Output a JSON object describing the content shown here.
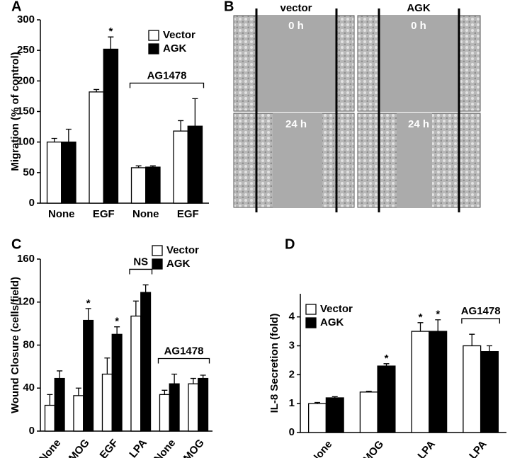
{
  "chart_data": [
    {
      "type": "bar",
      "label": "A",
      "ylabel": "Migration (% of control)",
      "categories": [
        "None",
        "EGF",
        "None",
        "EGF"
      ],
      "series": [
        {
          "name": "Vector",
          "color": "#ffffff",
          "values": [
            100,
            182,
            58,
            118
          ],
          "errors": [
            6,
            4,
            3,
            17
          ],
          "significance": [
            null,
            null,
            null,
            null
          ]
        },
        {
          "name": "AGK",
          "color": "#000000",
          "values": [
            100,
            252,
            59,
            126
          ],
          "errors": [
            21,
            20,
            2,
            45
          ],
          "significance": [
            null,
            "*",
            null,
            null
          ]
        }
      ],
      "brackets": [
        {
          "label": "AG1478",
          "from": 2,
          "to": 3
        }
      ],
      "ylim": [
        0,
        300
      ],
      "yticks": [
        0,
        50,
        100,
        150,
        200,
        250,
        300
      ],
      "legend": "top-right"
    },
    {
      "type": "bar",
      "label": "C",
      "ylabel": "Wound Closure (cells/field)",
      "categories": [
        "None",
        "MOG",
        "EGF",
        "LPA",
        "None",
        "MOG"
      ],
      "series": [
        {
          "name": "Vector",
          "color": "#ffffff",
          "values": [
            24,
            33,
            53,
            107,
            34,
            44
          ],
          "errors": [
            10,
            7,
            15,
            14,
            4,
            5
          ],
          "significance": [
            null,
            null,
            null,
            null,
            null,
            null
          ]
        },
        {
          "name": "AGK",
          "color": "#000000",
          "values": [
            49,
            103,
            90,
            129,
            44,
            49
          ],
          "errors": [
            7,
            11,
            7,
            7,
            9,
            3
          ],
          "significance": [
            null,
            "*",
            "*",
            null,
            null,
            null
          ]
        }
      ],
      "brackets": [
        {
          "label": "NS",
          "from": 3,
          "to": 3
        },
        {
          "label": "AG1478",
          "from": 4,
          "to": 5
        }
      ],
      "ylim": [
        0,
        160
      ],
      "yticks": [
        0,
        40,
        80,
        120,
        160
      ],
      "legend": "top-right"
    },
    {
      "type": "bar",
      "label": "D",
      "ylabel": "IL-8 Secretion (fold)",
      "categories": [
        "None",
        "MOG",
        "LPA",
        "LPA"
      ],
      "series": [
        {
          "name": "Vector",
          "color": "#ffffff",
          "values": [
            1.0,
            1.4,
            3.5,
            3.0
          ],
          "errors": [
            0.04,
            0.03,
            0.3,
            0.4
          ],
          "significance": [
            null,
            null,
            "*",
            null
          ]
        },
        {
          "name": "AGK",
          "color": "#000000",
          "values": [
            1.2,
            2.3,
            3.5,
            2.8
          ],
          "errors": [
            0.04,
            0.08,
            0.4,
            0.2
          ],
          "significance": [
            null,
            "*",
            "*",
            null
          ]
        }
      ],
      "brackets": [
        {
          "label": "AG1478",
          "from": 3,
          "to": 3
        }
      ],
      "ylim": [
        0,
        4.8
      ],
      "yticks": [
        0,
        1,
        2,
        3,
        4
      ],
      "legend": "top-left"
    }
  ],
  "images": {
    "label": "B",
    "columns": [
      "vector",
      "AGK"
    ],
    "rows": [
      "0 h",
      "24 h"
    ]
  }
}
